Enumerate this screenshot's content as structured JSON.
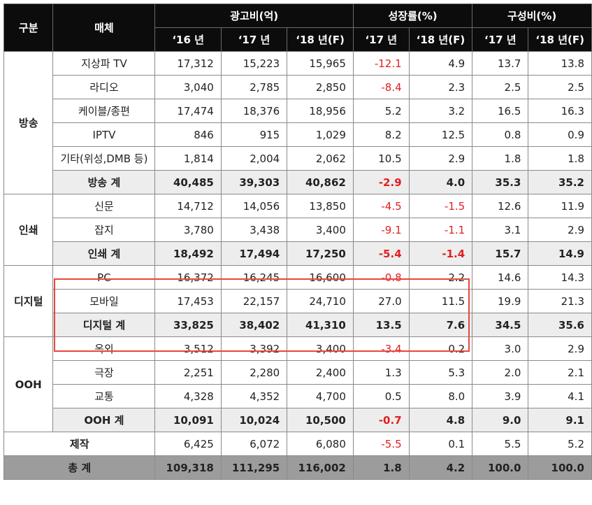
{
  "header": {
    "category": "구분",
    "media": "매체",
    "groups": [
      "광고비(억)",
      "성장률(%)",
      "구성비(%)"
    ],
    "cols": [
      "‘16 년",
      "‘17 년",
      "‘18 년(F)",
      "‘17 년",
      "‘18 년(F)",
      "‘17 년",
      "‘18 년(F)"
    ]
  },
  "rows": [
    {
      "kind": "item",
      "category": "방송",
      "name": "지상파 TV",
      "values": [
        "17,312",
        "15,223",
        "15,965",
        "-12.1",
        "4.9",
        "13.7",
        "13.8"
      ]
    },
    {
      "kind": "item",
      "name": "라디오",
      "values": [
        "3,040",
        "2,785",
        "2,850",
        "-8.4",
        "2.3",
        "2.5",
        "2.5"
      ]
    },
    {
      "kind": "item",
      "name": "케이블/종편",
      "values": [
        "17,474",
        "18,376",
        "18,956",
        "5.2",
        "3.2",
        "16.5",
        "16.3"
      ]
    },
    {
      "kind": "item",
      "name": "IPTV",
      "values": [
        "846",
        "915",
        "1,029",
        "8.2",
        "12.5",
        "0.8",
        "0.9"
      ]
    },
    {
      "kind": "item",
      "name": "기타(위성,DMB 등)",
      "values": [
        "1,814",
        "2,004",
        "2,062",
        "10.5",
        "2.9",
        "1.8",
        "1.8"
      ]
    },
    {
      "kind": "sub",
      "name": "방송 계",
      "values": [
        "40,485",
        "39,303",
        "40,862",
        "-2.9",
        "4.0",
        "35.3",
        "35.2"
      ]
    },
    {
      "kind": "item",
      "category": "인쇄",
      "name": "신문",
      "values": [
        "14,712",
        "14,056",
        "13,850",
        "-4.5",
        "-1.5",
        "12.6",
        "11.9"
      ]
    },
    {
      "kind": "item",
      "name": "잡지",
      "values": [
        "3,780",
        "3,438",
        "3,400",
        "-9.1",
        "-1.1",
        "3.1",
        "2.9"
      ]
    },
    {
      "kind": "sub",
      "name": "인쇄 계",
      "values": [
        "18,492",
        "17,494",
        "17,250",
        "-5.4",
        "-1.4",
        "15.7",
        "14.9"
      ]
    },
    {
      "kind": "item",
      "category": "디지털",
      "name": "PC",
      "values": [
        "16,372",
        "16,245",
        "16,600",
        "-0.8",
        "2.2",
        "14.6",
        "14.3"
      ]
    },
    {
      "kind": "item",
      "name": "모바일",
      "values": [
        "17,453",
        "22,157",
        "24,710",
        "27.0",
        "11.5",
        "19.9",
        "21.3"
      ]
    },
    {
      "kind": "sub",
      "name": "디지털 계",
      "values": [
        "33,825",
        "38,402",
        "41,310",
        "13.5",
        "7.6",
        "34.5",
        "35.6"
      ]
    },
    {
      "kind": "item",
      "category": "OOH",
      "name": "옥외",
      "values": [
        "3,512",
        "3,392",
        "3,400",
        "-3.4",
        "0.2",
        "3.0",
        "2.9"
      ]
    },
    {
      "kind": "item",
      "name": "극장",
      "values": [
        "2,251",
        "2,280",
        "2,400",
        "1.3",
        "5.3",
        "2.0",
        "2.1"
      ]
    },
    {
      "kind": "item",
      "name": "교통",
      "values": [
        "4,328",
        "4,352",
        "4,700",
        "0.5",
        "8.0",
        "3.9",
        "4.1"
      ]
    },
    {
      "kind": "sub",
      "name": "OOH 계",
      "values": [
        "10,091",
        "10,024",
        "10,500",
        "-0.7",
        "4.8",
        "9.0",
        "9.1"
      ]
    },
    {
      "kind": "production",
      "name": "제작",
      "values": [
        "6,425",
        "6,072",
        "6,080",
        "-5.5",
        "0.1",
        "5.5",
        "5.2"
      ]
    },
    {
      "kind": "total",
      "name": "총 계",
      "values": [
        "109,318",
        "111,295",
        "116,002",
        "1.8",
        "4.2",
        "100.0",
        "100.0"
      ]
    }
  ]
}
